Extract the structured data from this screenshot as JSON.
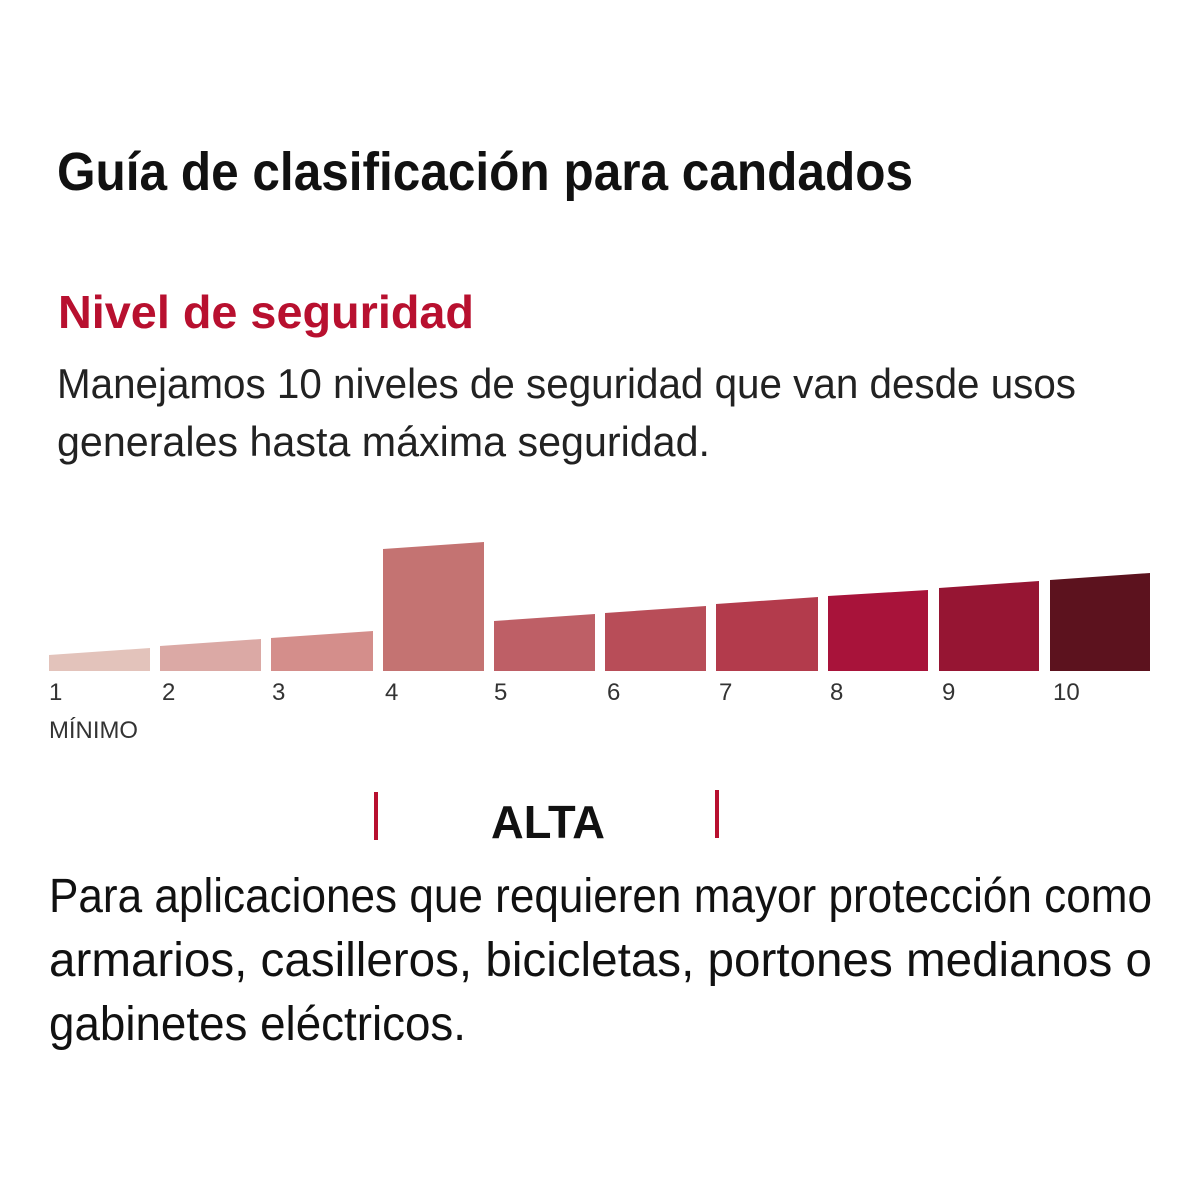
{
  "header": {
    "title": "Guía de clasificación para candados"
  },
  "section": {
    "heading": "Nivel de seguridad",
    "description": [
      "Manejamos 10 niveles de seguridad que van desde usos",
      "generales hasta máxima seguridad."
    ]
  },
  "scale": {
    "levels": [
      "1",
      "2",
      "3",
      "4",
      "5",
      "6",
      "7",
      "8",
      "9",
      "10"
    ],
    "min_label": "MÍNIMO",
    "selected": "ALTA"
  },
  "body": {
    "lines": [
      "Para aplicaciones que requieren mayor protección como",
      "armarios, casilleros, bicicletas, portones medianos o",
      "gabinetes eléctricos."
    ]
  }
}
